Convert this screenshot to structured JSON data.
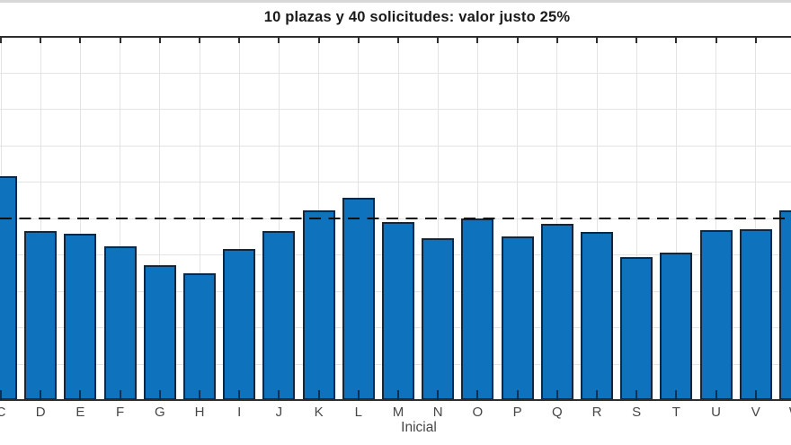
{
  "window": {
    "top_strip_color": "#D8D8D8"
  },
  "chart_data": {
    "type": "bar",
    "title": "10 plazas y 40 solicitudes: valor justo 25%",
    "xlabel": "Inicial",
    "ylabel": "",
    "categories": [
      "C",
      "D",
      "E",
      "F",
      "G",
      "H",
      "I",
      "J",
      "K",
      "L",
      "M",
      "N",
      "O",
      "P",
      "Q",
      "R",
      "S",
      "T",
      "U",
      "V",
      "W"
    ],
    "values": [
      30.7,
      23.2,
      22.8,
      21.1,
      18.5,
      17.4,
      20.7,
      23.2,
      26.0,
      27.8,
      24.5,
      22.2,
      25.0,
      22.5,
      24.2,
      23.1,
      19.6,
      20.2,
      23.3,
      23.5,
      26.0
    ],
    "unit": "%",
    "ylim": [
      0,
      50
    ],
    "y_grid_step": 5,
    "grid": true,
    "legend": null,
    "reference_line": {
      "value": 25,
      "style": "dashed",
      "meaning": "valor justo 25%"
    },
    "cropped_edges": "y-axis tick labels and outer bars cut off at left/right image borders",
    "colors": {
      "bar_fill": "#0F72BD",
      "bar_edge": "#0D2845",
      "grid": "#E4E4E4",
      "axis": "#2E2E2E",
      "dashed": "#111111",
      "title_text": "#1A1A1A",
      "tick_text": "#464646"
    }
  }
}
